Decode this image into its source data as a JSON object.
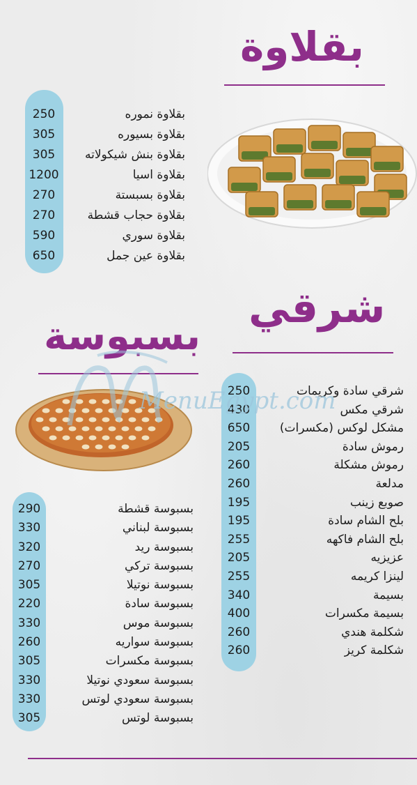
{
  "sections": {
    "baklava": {
      "title": "بقلاوة",
      "items": [
        {
          "name": "بقلاوة نموره",
          "price": "250"
        },
        {
          "name": "بقلاوة بسيوره",
          "price": "305"
        },
        {
          "name": "بقلاوة بنش شيكولاته",
          "price": "305"
        },
        {
          "name": "بقلاوة اسيا",
          "price": "1200"
        },
        {
          "name": "بقلاوة بسبستة",
          "price": "270"
        },
        {
          "name": "بقلاوة حجاب قشطة",
          "price": "270"
        },
        {
          "name": "بقلاوة سوري",
          "price": "590"
        },
        {
          "name": "بقلاوة عين جمل",
          "price": "650"
        }
      ]
    },
    "sharqi": {
      "title": "شرقي",
      "items": [
        {
          "name": "شرقي سادة وكريمات",
          "price": "250"
        },
        {
          "name": "شرقي مكس",
          "price": "430"
        },
        {
          "name": "مشكل لوكس (مكسرات)",
          "price": "650"
        },
        {
          "name": "رموش سادة",
          "price": "205"
        },
        {
          "name": "رموش مشكلة",
          "price": "260"
        },
        {
          "name": "مدلعة",
          "price": "260"
        },
        {
          "name": "صوبع زينب",
          "price": "195"
        },
        {
          "name": "بلح الشام سادة",
          "price": "195"
        },
        {
          "name": "بلح الشام فاكهه",
          "price": "255"
        },
        {
          "name": "عزيزيه",
          "price": "205"
        },
        {
          "name": "لينزا كريمه",
          "price": "255"
        },
        {
          "name": "بسيمة",
          "price": "340"
        },
        {
          "name": "بسيمة مكسرات",
          "price": "400"
        },
        {
          "name": "شكلمة هندي",
          "price": "260"
        },
        {
          "name": "شكلمة كريز",
          "price": "260"
        }
      ]
    },
    "basbousa": {
      "title": "بسبوسة",
      "items": [
        {
          "name": "بسبوسة قشطة",
          "price": "290"
        },
        {
          "name": "بسبوسة لبناني",
          "price": "330"
        },
        {
          "name": "بسبوسة ريد",
          "price": "320"
        },
        {
          "name": "بسبوسة تركي",
          "price": "270"
        },
        {
          "name": "بسبوسة نوتيلا",
          "price": "305"
        },
        {
          "name": "بسبوسة سادة",
          "price": "220"
        },
        {
          "name": "بسبوسة موس",
          "price": "330"
        },
        {
          "name": "بسبوسة سواريه",
          "price": "260"
        },
        {
          "name": "بسبوسة مكسرات",
          "price": "305"
        },
        {
          "name": "بسبوسة سعودي نوتيلا",
          "price": "330"
        },
        {
          "name": "بسبوسة سعودي لوتس",
          "price": "330"
        },
        {
          "name": "بسبوسة لوتس",
          "price": "305"
        }
      ]
    }
  },
  "watermark": {
    "text": "MenuEgypt.com",
    "color": "#9cc6dc"
  },
  "colors": {
    "accent": "#8e2e8a",
    "pill": "#9ed2e4",
    "text": "#1c1c1c"
  }
}
